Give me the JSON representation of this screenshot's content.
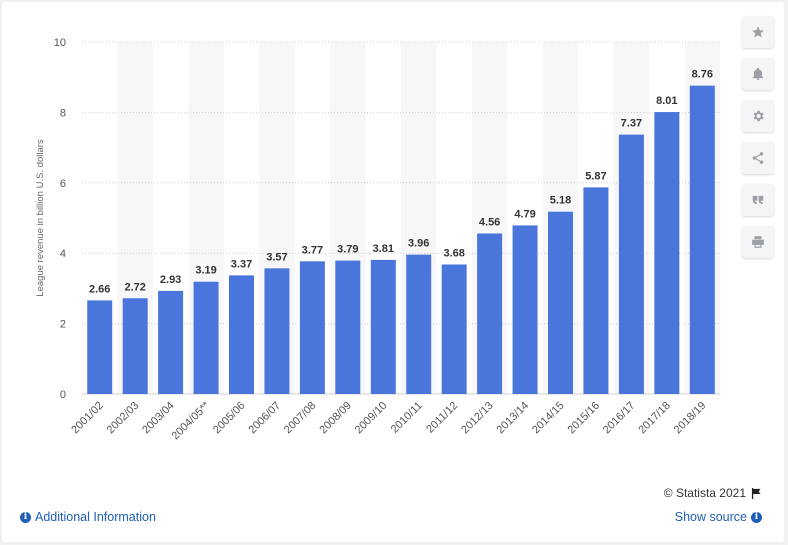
{
  "chart_data": {
    "type": "bar",
    "categories": [
      "2001/02",
      "2002/03",
      "2003/04",
      "2004/05**",
      "2005/06",
      "2006/07",
      "2007/08",
      "2008/09",
      "2009/10",
      "2010/11",
      "2011/12",
      "2012/13",
      "2013/14",
      "2014/15",
      "2015/16",
      "2016/17",
      "2017/18",
      "2018/19"
    ],
    "values": [
      2.66,
      2.72,
      2.93,
      3.19,
      3.37,
      3.57,
      3.77,
      3.79,
      3.81,
      3.96,
      3.68,
      4.56,
      4.79,
      5.18,
      5.87,
      7.37,
      8.01,
      8.76
    ],
    "value_labels": [
      "2.66",
      "2.72",
      "2.93",
      "3.19",
      "3.37",
      "3.57",
      "3.77",
      "3.79",
      "3.81",
      "3.96",
      "3.68",
      "4.56",
      "4.79",
      "5.18",
      "5.87",
      "7.37",
      "8.01",
      "8.76"
    ],
    "ylabel": "League revenue in billion U.S. dollars",
    "ylim": [
      0,
      10
    ],
    "yticks": [
      "0",
      "2",
      "4",
      "6",
      "8",
      "10"
    ],
    "grid": true,
    "bar_color": "#4a76dc",
    "band_color": "#f7f7f9"
  },
  "toolbar": {
    "icons": [
      "star-icon",
      "bell-icon",
      "gear-icon",
      "share-icon",
      "quote-icon",
      "print-icon"
    ]
  },
  "footer": {
    "credit": "© Statista 2021",
    "additional_info": "Additional Information",
    "show_source": "Show source"
  }
}
